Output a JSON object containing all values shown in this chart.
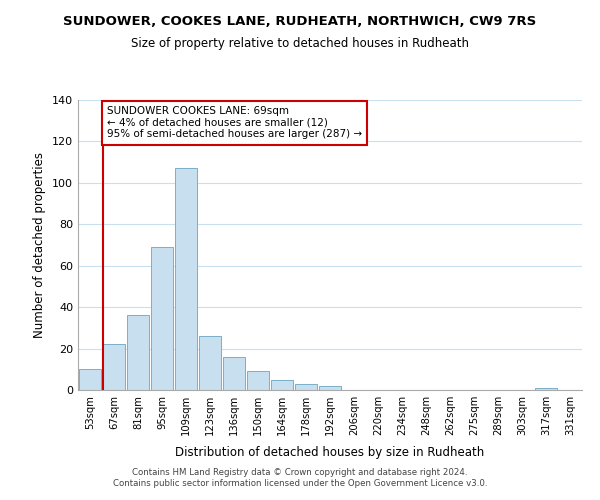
{
  "title": "SUNDOWER, COOKES LANE, RUDHEATH, NORTHWICH, CW9 7RS",
  "subtitle": "Size of property relative to detached houses in Rudheath",
  "xlabel": "Distribution of detached houses by size in Rudheath",
  "ylabel": "Number of detached properties",
  "bin_labels": [
    "53sqm",
    "67sqm",
    "81sqm",
    "95sqm",
    "109sqm",
    "123sqm",
    "136sqm",
    "150sqm",
    "164sqm",
    "178sqm",
    "192sqm",
    "206sqm",
    "220sqm",
    "234sqm",
    "248sqm",
    "262sqm",
    "275sqm",
    "289sqm",
    "303sqm",
    "317sqm",
    "331sqm"
  ],
  "bar_heights": [
    10,
    22,
    36,
    69,
    107,
    26,
    16,
    9,
    5,
    3,
    2,
    0,
    0,
    0,
    0,
    0,
    0,
    0,
    0,
    1,
    0
  ],
  "bar_color": "#c8dff0",
  "bar_edge_color": "#7aafc8",
  "vline_index": 1,
  "vline_color": "#cc0000",
  "ylim": [
    0,
    140
  ],
  "yticks": [
    0,
    20,
    40,
    60,
    80,
    100,
    120,
    140
  ],
  "annotation_title": "SUNDOWER COOKES LANE: 69sqm",
  "annotation_line1": "← 4% of detached houses are smaller (12)",
  "annotation_line2": "95% of semi-detached houses are larger (287) →",
  "annotation_box_color": "#ffffff",
  "annotation_box_edge": "#cc0000",
  "footer_line1": "Contains HM Land Registry data © Crown copyright and database right 2024.",
  "footer_line2": "Contains public sector information licensed under the Open Government Licence v3.0.",
  "background_color": "#ffffff",
  "grid_color": "#c8dff0"
}
